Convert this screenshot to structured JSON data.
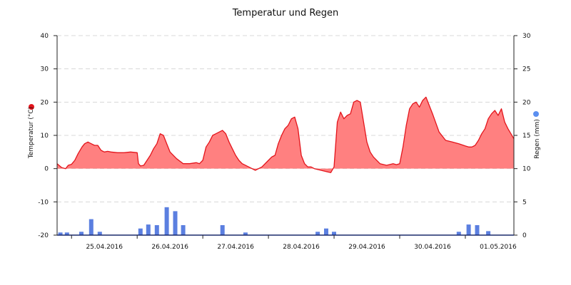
{
  "colors": {
    "temperature_line": "#e3141b",
    "temperature_fill": "#ff8080",
    "rain_bar": "#5b7fe0",
    "rain_dot": "#5b8ff0",
    "grid": "#d8d8d8",
    "axis": "#222222"
  },
  "chart_data": {
    "type": "area",
    "title": "Temperatur und Regen",
    "ylabel_left": "Temperatur (°C)",
    "ylabel_right": "Regen (mm)",
    "y_left_lim": [
      -20,
      40
    ],
    "y_left_ticks": [
      "40",
      "30",
      "20",
      "10",
      "0",
      "-10",
      "-20"
    ],
    "y_right_lim": [
      0,
      30
    ],
    "y_right_ticks": [
      "30",
      "25",
      "20",
      "15",
      "10",
      "5",
      "0"
    ],
    "x_unit": "days since 25.04.2016 00:00 (x axis shows dates)",
    "x_lim": [
      -0.22,
      6.74
    ],
    "x_ticks": [
      "25.04.2016",
      "26.04.2016",
      "27.04.2016",
      "28.04.2016",
      "29.04.2016",
      "30.04.2016",
      "01.05.2016"
    ],
    "grid": true,
    "legend": "markers beside axis titles (red dot left, blue dot right)",
    "series": [
      {
        "name": "Temperatur (°C)",
        "type": "area",
        "x": [
          -0.22,
          -0.15,
          -0.09,
          -0.05,
          0.0,
          0.05,
          0.1,
          0.16,
          0.2,
          0.25,
          0.3,
          0.35,
          0.4,
          0.45,
          0.5,
          0.55,
          0.6,
          0.7,
          0.8,
          0.9,
          1.0,
          1.02,
          1.05,
          1.1,
          1.15,
          1.2,
          1.25,
          1.3,
          1.35,
          1.4,
          1.45,
          1.5,
          1.6,
          1.7,
          1.8,
          1.9,
          1.95,
          2.0,
          2.05,
          2.1,
          2.15,
          2.2,
          2.25,
          2.3,
          2.35,
          2.4,
          2.45,
          2.5,
          2.55,
          2.6,
          2.7,
          2.8,
          2.9,
          3.0,
          3.05,
          3.1,
          3.15,
          3.2,
          3.25,
          3.3,
          3.35,
          3.4,
          3.45,
          3.5,
          3.55,
          3.6,
          3.65,
          3.7,
          3.8,
          3.9,
          3.95,
          4.0,
          4.05,
          4.1,
          4.15,
          4.2,
          4.25,
          4.3,
          4.35,
          4.4,
          4.45,
          4.5,
          4.55,
          4.6,
          4.7,
          4.8,
          4.9,
          4.95,
          5.0,
          5.05,
          5.1,
          5.15,
          5.2,
          5.25,
          5.3,
          5.35,
          5.4,
          5.45,
          5.5,
          5.6,
          5.7,
          5.8,
          5.9,
          6.0,
          6.05,
          6.1,
          6.15,
          6.2,
          6.25,
          6.3,
          6.35,
          6.4,
          6.45,
          6.5,
          6.55,
          6.6,
          6.65,
          6.74
        ],
        "values": [
          1.5,
          0.3,
          0.0,
          1.0,
          1.3,
          2.5,
          4.5,
          6.5,
          7.5,
          8.0,
          7.5,
          7.0,
          7.0,
          5.5,
          5.0,
          5.2,
          5.0,
          4.8,
          4.8,
          5.0,
          4.8,
          1.5,
          0.8,
          1.0,
          2.5,
          4.0,
          6.0,
          7.5,
          10.5,
          10.0,
          7.5,
          5.0,
          3.0,
          1.5,
          1.5,
          1.8,
          1.5,
          2.5,
          6.5,
          8.0,
          10.0,
          10.5,
          11.0,
          11.5,
          10.5,
          8.0,
          6.0,
          4.0,
          2.5,
          1.5,
          0.5,
          -0.5,
          0.5,
          2.5,
          3.5,
          4.0,
          7.5,
          10.0,
          12.0,
          13.0,
          15.0,
          15.5,
          12.0,
          4.0,
          1.5,
          0.5,
          0.5,
          0.0,
          -0.5,
          -1.0,
          -1.2,
          0.5,
          14.0,
          17.0,
          15.0,
          16.0,
          16.5,
          20.0,
          20.5,
          20.0,
          14.0,
          8.0,
          5.0,
          3.5,
          1.5,
          1.0,
          1.5,
          1.2,
          1.5,
          6.5,
          13.0,
          18.0,
          19.5,
          20.0,
          18.5,
          20.5,
          21.5,
          19.0,
          16.5,
          11.0,
          8.5,
          8.0,
          7.5,
          6.8,
          6.5,
          6.5,
          7.0,
          8.5,
          10.5,
          12.0,
          15.0,
          16.5,
          17.5,
          16.0,
          18.0,
          14.0,
          12.0,
          9.0
        ]
      },
      {
        "name": "Regen (mm)",
        "type": "bar",
        "x": [
          -0.17,
          -0.07,
          0.15,
          0.3,
          0.43,
          1.05,
          1.17,
          1.3,
          1.45,
          1.58,
          1.7,
          2.3,
          2.65,
          3.75,
          3.88,
          4.0,
          5.9,
          6.05,
          6.18,
          6.35
        ],
        "values": [
          0.4,
          0.4,
          0.5,
          2.4,
          0.5,
          1.0,
          1.6,
          1.5,
          4.2,
          3.6,
          1.5,
          1.5,
          0.4,
          0.5,
          1.0,
          0.5,
          0.5,
          1.6,
          1.5,
          0.6
        ]
      }
    ]
  }
}
